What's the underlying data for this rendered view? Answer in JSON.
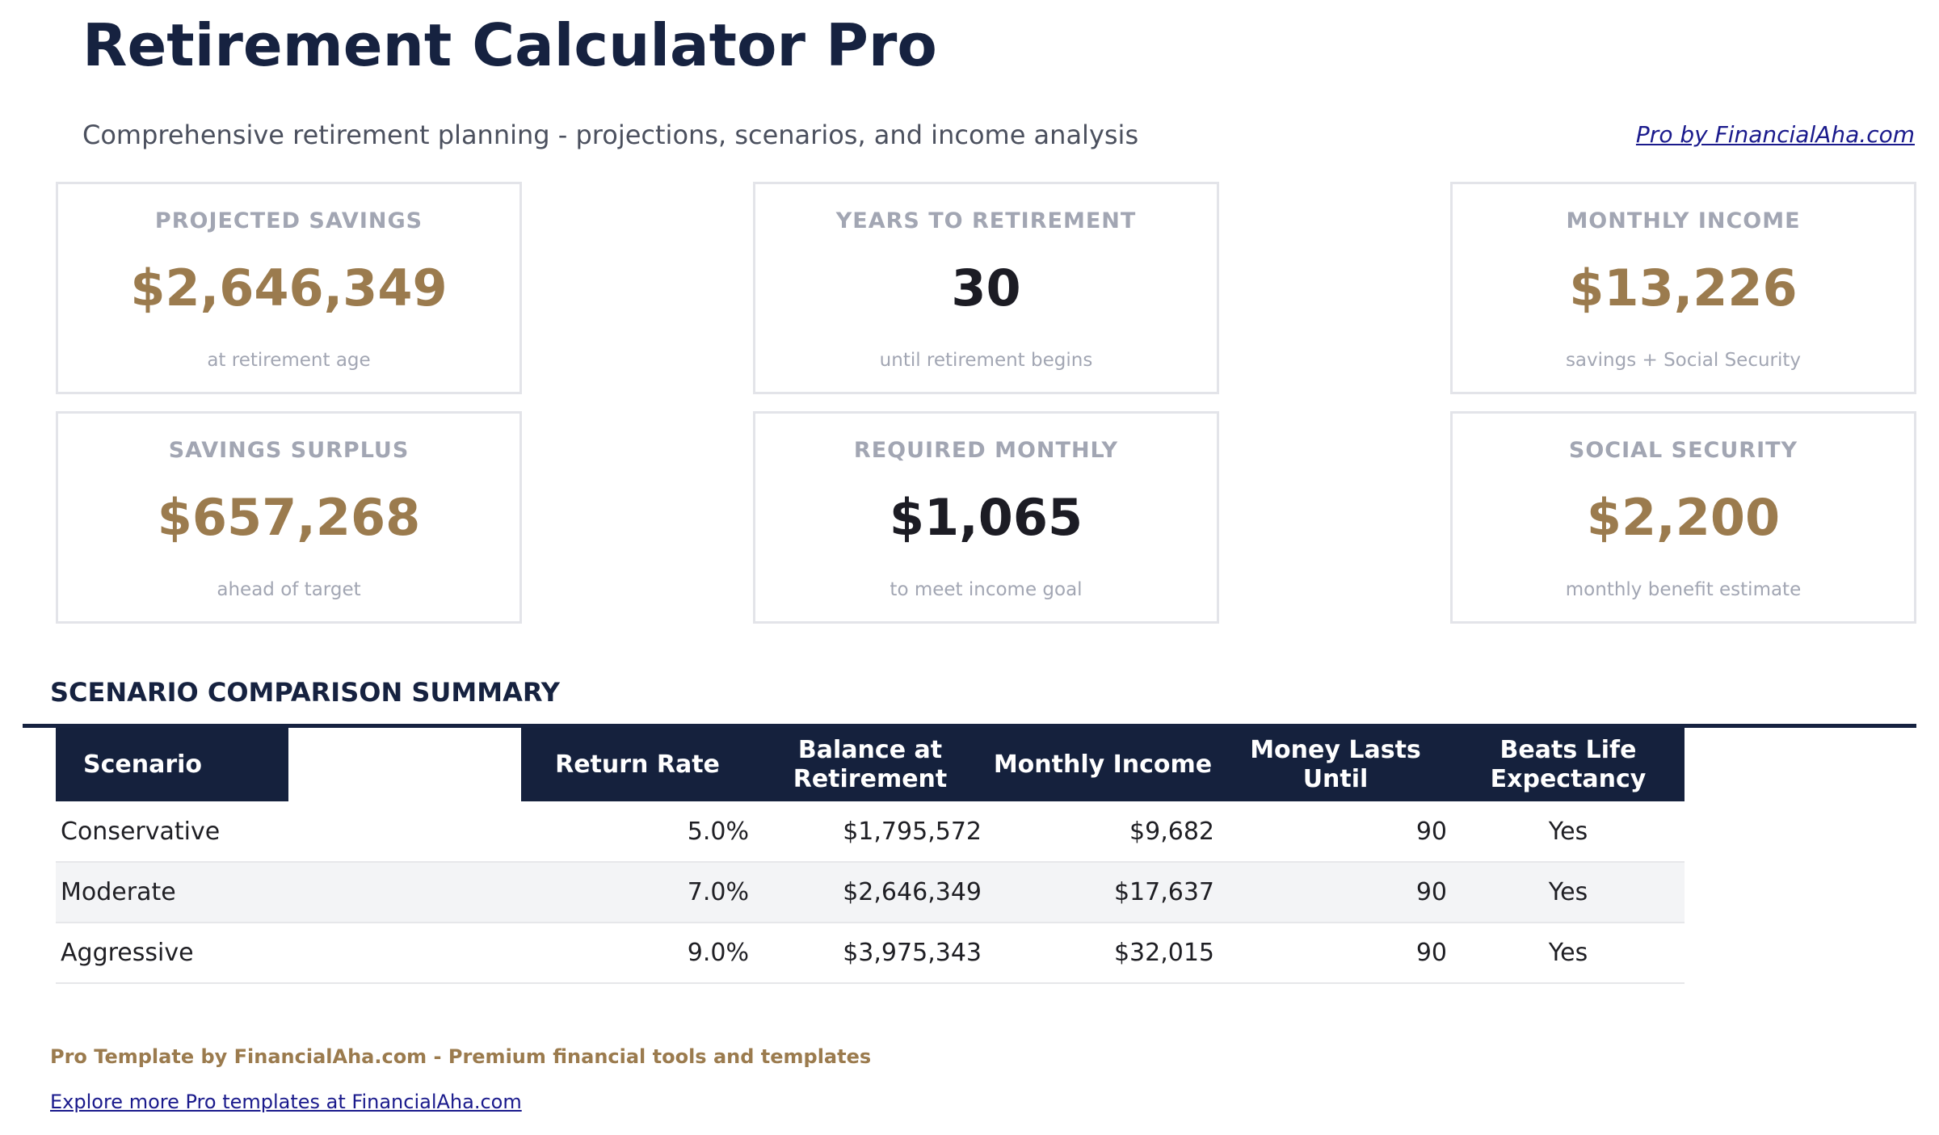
{
  "header": {
    "title": "Retirement Calculator Pro",
    "subtitle": "Comprehensive retirement planning - projections, scenarios, and income analysis",
    "pro_link": "Pro by FinancialAha.com"
  },
  "cards": [
    {
      "label": "PROJECTED SAVINGS",
      "value": "$2,646,349",
      "sub": "at retirement age",
      "color": "#9b7b4e"
    },
    {
      "label": "YEARS TO RETIREMENT",
      "value": "30",
      "sub": "until retirement begins",
      "color": "#1c1c24"
    },
    {
      "label": "MONTHLY INCOME",
      "value": "$13,226",
      "sub": "savings + Social Security",
      "color": "#9b7b4e"
    },
    {
      "label": "SAVINGS SURPLUS",
      "value": "$657,268",
      "sub": "ahead of target",
      "color": "#9b7b4e"
    },
    {
      "label": "REQUIRED MONTHLY",
      "value": "$1,065",
      "sub": "to meet income goal",
      "color": "#1c1c24"
    },
    {
      "label": "SOCIAL SECURITY",
      "value": "$2,200",
      "sub": "monthly benefit estimate",
      "color": "#9b7b4e"
    }
  ],
  "scenarios": {
    "title": "SCENARIO COMPARISON SUMMARY",
    "columns": [
      "Scenario",
      "",
      "Return Rate",
      "Balance at Retirement",
      "Monthly Income",
      "Money Lasts Until",
      "Beats Life Expectancy"
    ],
    "rows": [
      [
        "Conservative",
        "",
        "5.0%",
        "$1,795,572",
        "$9,682",
        "90",
        "Yes"
      ],
      [
        "Moderate",
        "",
        "7.0%",
        "$2,646,349",
        "$17,637",
        "90",
        "Yes"
      ],
      [
        "Aggressive",
        "",
        "9.0%",
        "$3,975,343",
        "$32,015",
        "90",
        "Yes"
      ]
    ]
  },
  "footer": {
    "text": "Pro Template by FinancialAha.com - Premium financial tools and templates",
    "link": "Explore more Pro templates at FinancialAha.com"
  }
}
